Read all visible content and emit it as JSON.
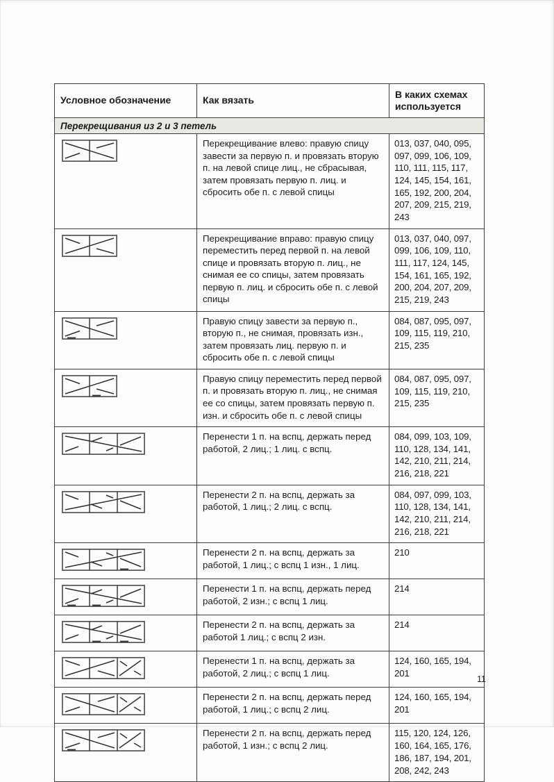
{
  "page": {
    "number": "11"
  },
  "table": {
    "headers": [
      "Условное обозначение",
      "Как вязать",
      "В каких схемах используется"
    ],
    "section": "Перекрещивания из 2 и 3 петель",
    "rows": [
      {
        "symbol": {
          "name": "cross-2-left-icon",
          "geo": "left2",
          "dashes": []
        },
        "how": "Перекрещивание влево: правую спицу завести за первую п. и провязать вторую п. на левой спице лиц., не сбрасывая, затем провязать первую п. лиц. и сбросить обе п. с левой спицы",
        "charts": "013, 037, 040, 095, 097, 099, 106, 109, 110, 111, 115, 117, 124, 145, 154, 161, 165, 192, 200, 204, 207, 209, 215, 219, 243"
      },
      {
        "symbol": {
          "name": "cross-2-right-icon",
          "geo": "right2",
          "dashes": []
        },
        "how": "Перекрещивание вправо: правую спицу переместить перед первой п. на левой спице и провязать вторую п. лиц., не снимая ее со спицы, затем провязать первую п. лиц. и сбросить обе п. с левой спицы",
        "charts": "013, 037, 040, 097, 099, 106, 109, 110, 111, 117, 124, 145, 154, 161, 165, 192, 200, 204, 207, 209, 215, 219, 243"
      },
      {
        "symbol": {
          "name": "cross-2-left-purl-icon",
          "geo": "left2",
          "dashes": [
            1
          ]
        },
        "how": "Правую спицу завести за первую п., вторую п., не снимая, провязать изн., затем провязать лиц. первую п. и сбросить обе п. с левой спицы",
        "charts": "084, 087, 095, 097, 109, 115, 119, 210, 215, 235"
      },
      {
        "symbol": {
          "name": "cross-2-right-purl-icon",
          "geo": "right2",
          "dashes": [
            2
          ]
        },
        "how": "Правую спицу переместить перед первой п. и провязать вторую п. лиц., не снимая ее со спицы, затем провязать первую п. изн. и сбросить обе п. с левой спицы",
        "charts": "084, 087, 095, 097, 109, 115, 119, 210, 215, 235"
      },
      {
        "symbol": {
          "name": "cross-3-front-icon",
          "geo": "left3",
          "dashes": []
        },
        "how": "Перенести 1 п. на вспц, держать перед работой, 2 лиц.; 1 лиц. с вспц.",
        "charts": "084, 099, 103, 109, 110, 128, 134, 141, 142, 210, 211, 214, 216, 218, 221"
      },
      {
        "symbol": {
          "name": "cross-3-back-icon",
          "geo": "right3",
          "dashes": []
        },
        "how": "Перенести 2 п. на вспц, держать за работой, 1 лиц.; 2 лиц. с вспц.",
        "charts": "084, 097, 099, 103, 110, 128, 134, 141, 142, 210, 211, 214, 216, 218, 221"
      },
      {
        "symbol": {
          "name": "cross-3-back-purl-icon",
          "geo": "right3",
          "dashes": [
            3
          ]
        },
        "how": "Перенести 2 п. на вспц, держать за работой, 1 лиц.; с вспц 1 изн., 1 лиц.",
        "charts": "210"
      },
      {
        "symbol": {
          "name": "cross-3-front-purl2-icon",
          "geo": "left3",
          "dashes": [
            1,
            2
          ]
        },
        "how": "Перенести 1 п. на вспц, держать перед работой, 2 изн.; с вспц 1 лиц.",
        "charts": "214"
      },
      {
        "symbol": {
          "name": "cross-3-back-purl2-icon",
          "geo": "left3",
          "dashes": [
            2,
            3
          ]
        },
        "how": "Перенести 2 п. на вспц, держать за работой 1 лиц.; с вспц 2 изн.",
        "charts": "214"
      },
      {
        "symbol": {
          "name": "cross-2-1-back-icon",
          "geo": "x2k1right",
          "dashes": []
        },
        "how": "Перенести 1 п. на вспц, держать за работой, 2 лиц.; с вспц 1 лиц.",
        "charts": "124, 160, 165, 194, 201"
      },
      {
        "symbol": {
          "name": "cross-2-1-front-icon",
          "geo": "x2k1left",
          "dashes": []
        },
        "how": "Перенести 2 п. на вспц, держать перед работой, 1 лиц.; с вспц 2 лиц.",
        "charts": "124, 160, 165, 194, 201"
      },
      {
        "symbol": {
          "name": "cross-2-1-front-purl-icon",
          "geo": "x2k1left",
          "dashes": [
            1
          ]
        },
        "how": "Перенести 2 п. на вспц, держать перед работой, 1 изн.; с вспц 2 лиц.",
        "charts": "115, 120, 124, 126, 160, 164, 165, 176, 186, 187, 194, 201, 208, 242, 243"
      }
    ]
  }
}
